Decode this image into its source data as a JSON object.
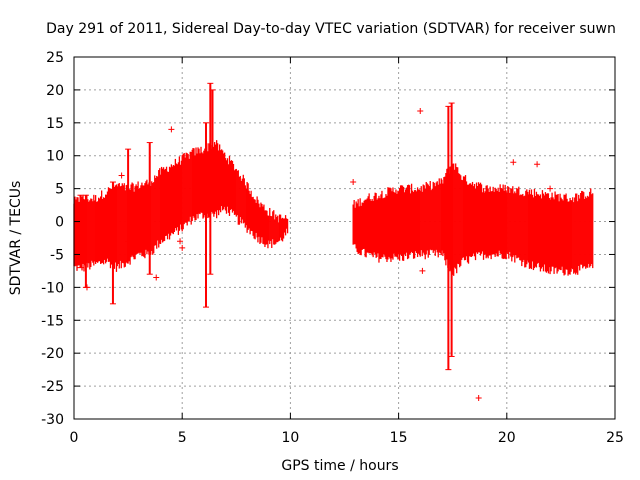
{
  "chart_data": {
    "type": "scatter",
    "title": "Day 291 of 2011, Sidereal Day-to-day VTEC variation (SDTVAR) for receiver suwn",
    "xlabel": "GPS time / hours",
    "ylabel": "SDTVAR / TECUs",
    "xlim": [
      0,
      25
    ],
    "ylim": [
      -30,
      25
    ],
    "xticks": [
      0,
      5,
      10,
      15,
      20,
      25
    ],
    "yticks": [
      -30,
      -25,
      -20,
      -15,
      -10,
      -5,
      0,
      5,
      10,
      15,
      20,
      25
    ],
    "grid": true,
    "marker": "+",
    "color": "#ff0000",
    "envelope": [
      {
        "x": 0.0,
        "low": -7.0,
        "high": 3.0
      },
      {
        "x": 0.5,
        "low": -7.0,
        "high": 3.5
      },
      {
        "x": 1.0,
        "low": -6.5,
        "high": 3.5
      },
      {
        "x": 1.5,
        "low": -6.0,
        "high": 4.5
      },
      {
        "x": 2.0,
        "low": -7.0,
        "high": 5.5
      },
      {
        "x": 2.5,
        "low": -6.0,
        "high": 5.0
      },
      {
        "x": 3.0,
        "low": -5.0,
        "high": 5.5
      },
      {
        "x": 3.5,
        "low": -5.0,
        "high": 6.0
      },
      {
        "x": 4.0,
        "low": -3.0,
        "high": 7.5
      },
      {
        "x": 4.5,
        "low": -2.0,
        "high": 8.5
      },
      {
        "x": 5.0,
        "low": -1.0,
        "high": 9.5
      },
      {
        "x": 5.5,
        "low": 0.5,
        "high": 10.5
      },
      {
        "x": 6.0,
        "low": 1.0,
        "high": 11.0
      },
      {
        "x": 6.5,
        "low": 1.0,
        "high": 12.0
      },
      {
        "x": 7.0,
        "low": 2.0,
        "high": 10.0
      },
      {
        "x": 7.5,
        "low": 0.5,
        "high": 8.0
      },
      {
        "x": 8.0,
        "low": -1.0,
        "high": 5.5
      },
      {
        "x": 8.5,
        "low": -2.5,
        "high": 3.0
      },
      {
        "x": 9.0,
        "low": -3.5,
        "high": 1.5
      },
      {
        "x": 9.5,
        "low": -3.0,
        "high": 0.5
      },
      {
        "x": 9.9,
        "low": -1.5,
        "high": 0.5
      },
      {
        "x": 12.9,
        "low": -4.0,
        "high": 2.5
      },
      {
        "x": 13.5,
        "low": -5.0,
        "high": 3.5
      },
      {
        "x": 14.0,
        "low": -5.5,
        "high": 4.0
      },
      {
        "x": 15.0,
        "low": -5.5,
        "high": 5.0
      },
      {
        "x": 16.0,
        "low": -5.0,
        "high": 5.0
      },
      {
        "x": 17.0,
        "low": -5.0,
        "high": 6.0
      },
      {
        "x": 17.5,
        "low": -8.0,
        "high": 9.0
      },
      {
        "x": 18.0,
        "low": -6.0,
        "high": 6.5
      },
      {
        "x": 19.0,
        "low": -5.0,
        "high": 5.0
      },
      {
        "x": 20.0,
        "low": -5.0,
        "high": 5.0
      },
      {
        "x": 21.0,
        "low": -6.5,
        "high": 4.5
      },
      {
        "x": 22.0,
        "low": -7.5,
        "high": 4.0
      },
      {
        "x": 23.0,
        "low": -7.5,
        "high": 3.5
      },
      {
        "x": 24.0,
        "low": -7.0,
        "high": 4.5
      }
    ],
    "spikes": [
      {
        "x": 0.3,
        "low": -7.0,
        "high": 4.0
      },
      {
        "x": 0.55,
        "low": -10.0,
        "high": 4.0
      },
      {
        "x": 1.8,
        "low": -12.5,
        "high": 6.0
      },
      {
        "x": 2.5,
        "low": -3.0,
        "high": 11.0
      },
      {
        "x": 3.5,
        "low": -8.0,
        "high": 12.0
      },
      {
        "x": 6.1,
        "low": -13.0,
        "high": 15.0
      },
      {
        "x": 6.3,
        "low": -8.0,
        "high": 21.0
      },
      {
        "x": 6.4,
        "low": 5.0,
        "high": 20.0
      },
      {
        "x": 17.3,
        "low": -22.5,
        "high": 17.5
      },
      {
        "x": 17.45,
        "low": -20.5,
        "high": 18.0
      }
    ],
    "outliers": [
      {
        "x": 0.6,
        "y": -10.0
      },
      {
        "x": 4.5,
        "y": 14.0
      },
      {
        "x": 5.0,
        "y": -4.0
      },
      {
        "x": 4.9,
        "y": -3.0
      },
      {
        "x": 16.0,
        "y": 16.8
      },
      {
        "x": 18.7,
        "y": -26.8
      },
      {
        "x": 20.3,
        "y": 9.0
      },
      {
        "x": 21.4,
        "y": 8.7
      },
      {
        "x": 22.0,
        "y": 5.0
      },
      {
        "x": 12.9,
        "y": 6.0
      },
      {
        "x": 16.1,
        "y": -7.5
      },
      {
        "x": 3.8,
        "y": -8.5
      },
      {
        "x": 2.2,
        "y": 7.0
      }
    ]
  }
}
